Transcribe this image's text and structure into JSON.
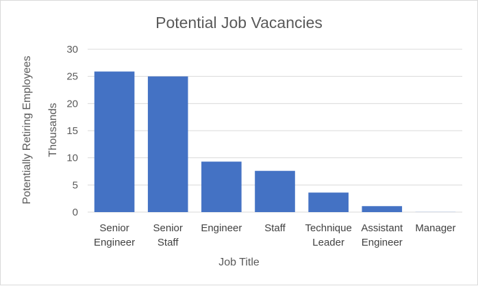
{
  "chart_data": {
    "type": "bar",
    "title": "Potential Job Vacancies",
    "xlabel": "Job Title",
    "ylabel": "Potentially Retiring Employees",
    "yunit_label": "Thousands",
    "categories": [
      [
        "Senior",
        "Engineer"
      ],
      [
        "Senior",
        "Staff"
      ],
      [
        "Engineer"
      ],
      [
        "Staff"
      ],
      [
        "Technique",
        "Leader"
      ],
      [
        "Assistant",
        "Engineer"
      ],
      [
        "Manager"
      ]
    ],
    "values": [
      25.9,
      25.0,
      9.3,
      7.6,
      3.6,
      1.1,
      0.02
    ],
    "ylim": [
      0,
      30
    ],
    "yticks": [
      0,
      5,
      10,
      15,
      20,
      25,
      30
    ],
    "grid": true,
    "legend": "none",
    "colors": {
      "bar": "#4472c4",
      "grid": "#d9d9d9",
      "text": "#595959"
    }
  }
}
